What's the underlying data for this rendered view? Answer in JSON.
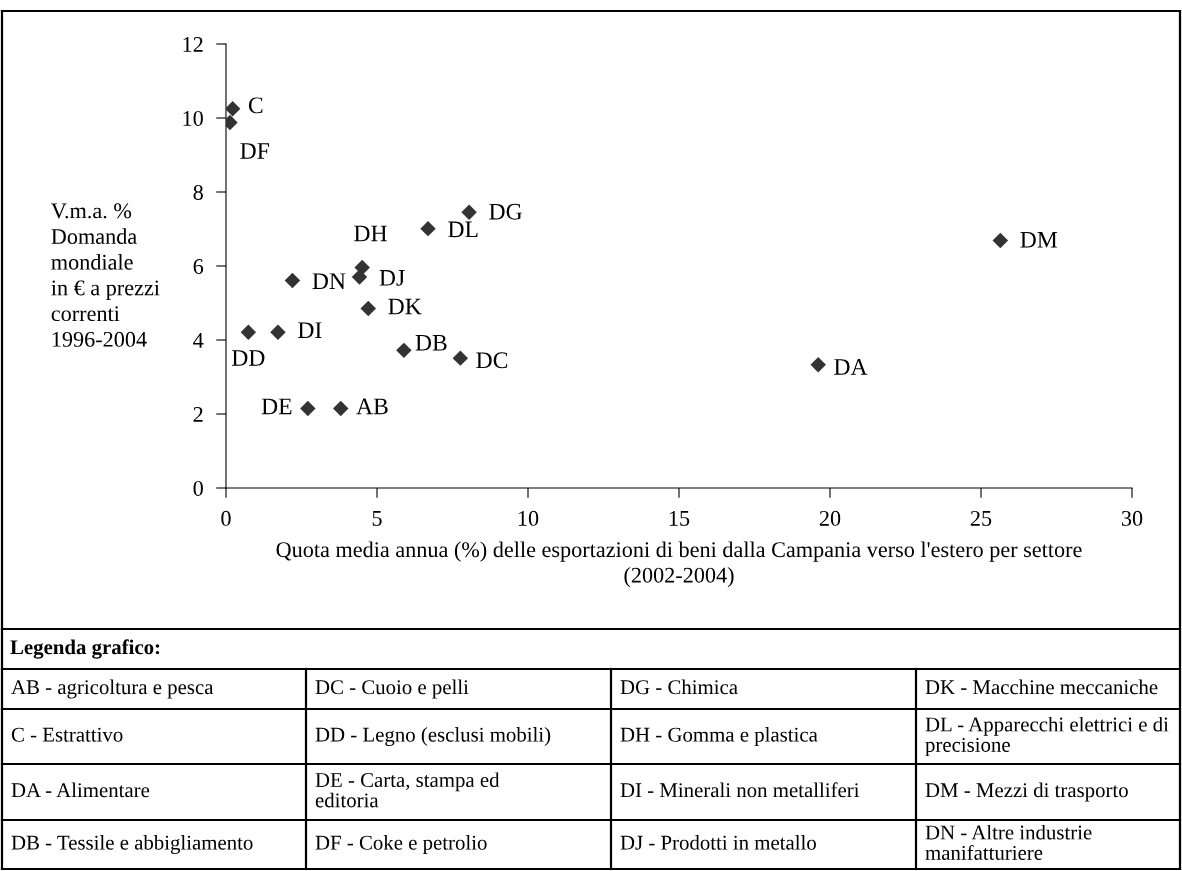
{
  "chart_data": {
    "type": "scatter",
    "xlabel": "Quota media annua (%) delle esportazioni di beni dalla Campania verso l'estero per settore\n(2002-2004)",
    "ylabel": "V.m.a. %\nDomanda\nmondiale\nin € a prezzi\ncorrenti\n1996-2004",
    "series": [
      {
        "color": "#333333",
        "x": [
          3.8,
          0.22,
          19.61,
          5.89,
          7.76,
          0.74,
          2.71,
          0.13,
          8.05,
          4.51,
          1.72,
          4.42,
          4.71,
          6.69,
          25.64,
          2.2
        ],
        "values": [
          2.15,
          10.25,
          3.33,
          3.72,
          3.51,
          4.21,
          2.15,
          9.88,
          7.45,
          5.96,
          4.21,
          5.7,
          4.85,
          7.01,
          6.69,
          5.61
        ],
        "value_labels": [
          "AB",
          "C",
          "DA",
          "DB",
          "DC",
          "DD",
          "DE",
          "DF",
          "DG",
          "DH",
          "DI",
          "DJ",
          "DK",
          "DL",
          "DM",
          "DN"
        ]
      }
    ],
    "xlim": [
      0,
      30
    ],
    "xticks": [
      0,
      5,
      10,
      15,
      20,
      25,
      30
    ],
    "ylim": [
      0,
      12
    ],
    "yticks": [
      0,
      2,
      4,
      6,
      8,
      10,
      12
    ],
    "marker": "diamond",
    "grid": false,
    "annotations": [
      "Legenda grafico:",
      "AB - agricoltura e pesca",
      "DC - Cuoio e pelli",
      "DG - Chimica",
      "DK - Macchine meccaniche",
      "C - Estrattivo",
      "DD - Legno (esclusi mobili)",
      "DH - Gomma e plastica",
      "DL - Apparecchi elettrici e di\nprecisione",
      "DA - Alimentare",
      "DE - Carta, stampa ed\neditoria",
      "DI - Minerali non metalliferi",
      "DM - Mezzi di trasporto",
      "DB - Tessile e abbigliamento",
      "DF - Coke e petrolio",
      "DJ - Prodotti in metallo",
      "DN - Altre industrie\nmanifatturiere"
    ]
  }
}
